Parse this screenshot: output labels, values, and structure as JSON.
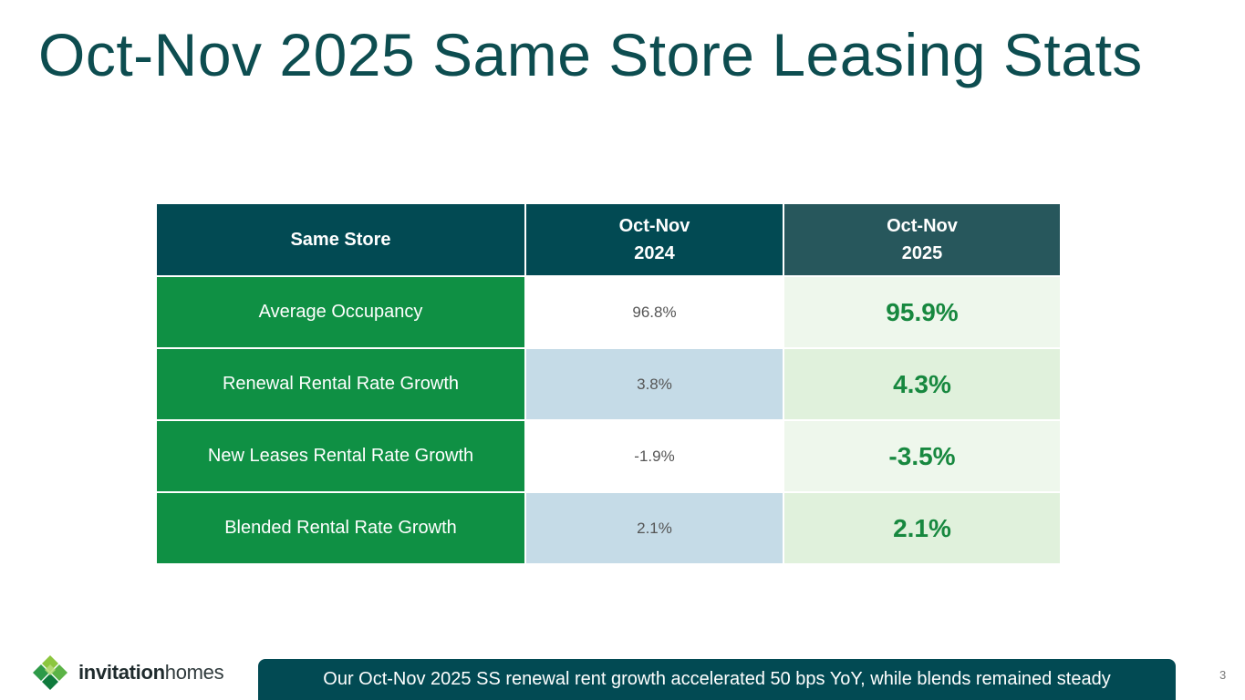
{
  "slide": {
    "title": "Oct-Nov 2025 Same Store Leasing Stats",
    "page_number": "3"
  },
  "table": {
    "headers": {
      "metric": "Same Store",
      "prior": {
        "line1": "Oct-Nov",
        "line2": "2024"
      },
      "current": {
        "line1": "Oct-Nov",
        "line2": "2025"
      }
    },
    "rows": [
      {
        "metric": "Average Occupancy",
        "prior": "96.8%",
        "current": "95.9%"
      },
      {
        "metric": "Renewal Rental Rate Growth",
        "prior": "3.8%",
        "current": "4.3%"
      },
      {
        "metric": "New Leases Rental Rate Growth",
        "prior": "-1.9%",
        "current": "-3.5%"
      },
      {
        "metric": "Blended Rental Rate Growth",
        "prior": "2.1%",
        "current": "2.1%"
      }
    ]
  },
  "logo": {
    "icon": "diamond-cluster-logo-icon",
    "word1": "invitation",
    "word2": "homes"
  },
  "footer": {
    "banner": "Our Oct-Nov 2025 SS renewal rent growth accelerated 50 bps YoY, while blends remained steady"
  },
  "colors": {
    "title": "#0d4d50",
    "header_dark": "#024a53",
    "header_current": "#27575c",
    "metric_green": "#0f9044",
    "value_green": "#17883f",
    "row_blue": "#c5dbe7",
    "row_lightgreen": "#e0f1dc"
  }
}
